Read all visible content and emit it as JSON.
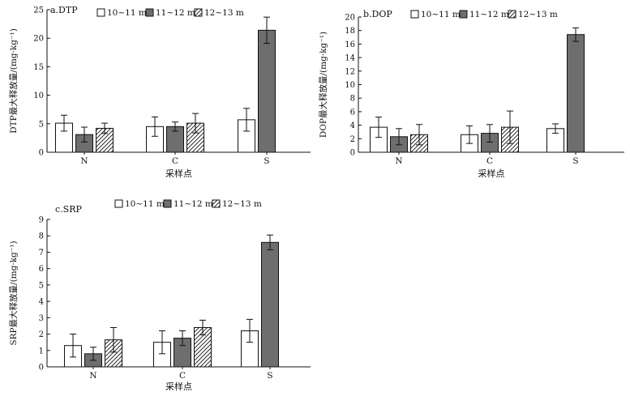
{
  "legend": {
    "items": [
      "10~11 m",
      "11~12 m",
      "12~13 m"
    ]
  },
  "colors": {
    "series_1": "#ffffff",
    "series_2": "#6e6e6e",
    "series_3": "hatched"
  },
  "chart_data": [
    {
      "type": "bar",
      "panel_label": "a.DTP",
      "ylabel": "DTP最大释放量/(mg·kg⁻¹)",
      "xlabel": "采样点",
      "categories": [
        "N",
        "C",
        "S"
      ],
      "ylim": [
        0,
        25
      ],
      "yticks": [
        0,
        5,
        10,
        15,
        20,
        25
      ],
      "legend_position": "top",
      "series": [
        {
          "name": "10~11 m",
          "values": [
            5.1,
            4.5,
            5.7
          ],
          "errors": [
            1.4,
            1.7,
            2.0
          ]
        },
        {
          "name": "11~12 m",
          "values": [
            3.1,
            4.5,
            21.4
          ],
          "errors": [
            1.3,
            0.8,
            2.3
          ]
        },
        {
          "name": "12~13 m",
          "values": [
            4.2,
            5.1,
            null
          ],
          "errors": [
            0.9,
            1.7,
            null
          ]
        }
      ]
    },
    {
      "type": "bar",
      "panel_label": "b.DOP",
      "ylabel": "DOP最大释放量/(mg·kg⁻¹)",
      "xlabel": "采样点",
      "categories": [
        "N",
        "C",
        "S"
      ],
      "ylim": [
        0,
        20
      ],
      "yticks": [
        0,
        2,
        4,
        6,
        8,
        10,
        12,
        14,
        16,
        18,
        20
      ],
      "legend_position": "top",
      "series": [
        {
          "name": "10~11 m",
          "values": [
            3.7,
            2.6,
            3.5
          ],
          "errors": [
            1.5,
            1.3,
            0.7
          ]
        },
        {
          "name": "11~12 m",
          "values": [
            2.3,
            2.8,
            17.4
          ],
          "errors": [
            1.2,
            1.3,
            1.0
          ]
        },
        {
          "name": "12~13 m",
          "values": [
            2.6,
            3.7,
            null
          ],
          "errors": [
            1.5,
            2.4,
            null
          ]
        }
      ]
    },
    {
      "type": "bar",
      "panel_label": "c.SRP",
      "ylabel": "SRP最大释放量/(mg·kg⁻¹)",
      "xlabel": "采样点",
      "categories": [
        "N",
        "C",
        "S"
      ],
      "ylim": [
        0,
        9
      ],
      "yticks": [
        0,
        1,
        2,
        3,
        4,
        5,
        6,
        7,
        8,
        9
      ],
      "legend_position": "top",
      "series": [
        {
          "name": "10~11 m",
          "values": [
            1.3,
            1.5,
            2.2
          ],
          "errors": [
            0.7,
            0.7,
            0.7
          ]
        },
        {
          "name": "11~12 m",
          "values": [
            0.8,
            1.75,
            7.6
          ],
          "errors": [
            0.4,
            0.45,
            0.45
          ]
        },
        {
          "name": "12~13 m",
          "values": [
            1.65,
            2.4,
            null
          ],
          "errors": [
            0.75,
            0.45,
            null
          ]
        }
      ]
    }
  ]
}
